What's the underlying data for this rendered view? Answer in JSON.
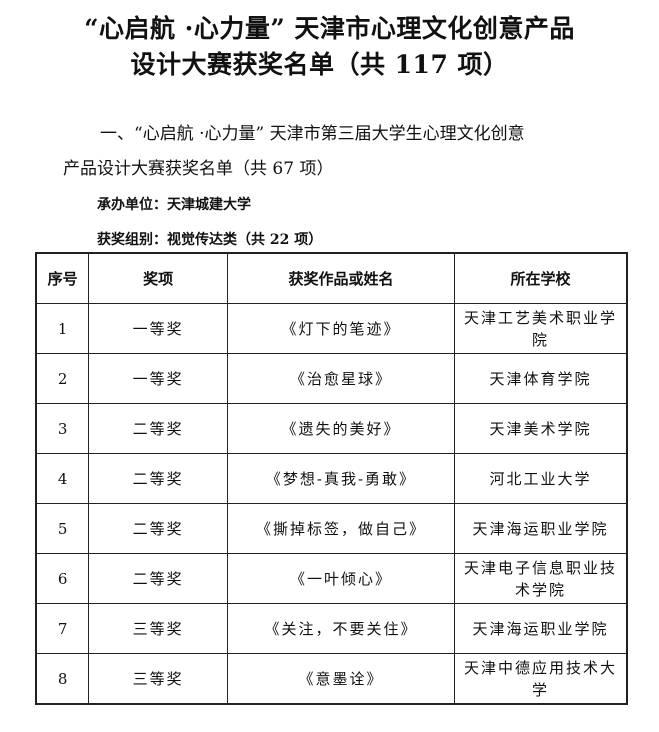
{
  "title": {
    "line1": "“心启航 ·心力量” 天津市心理文化创意产品",
    "line2": "设计大赛获奖名单（共 117 项）"
  },
  "section": {
    "line1": "一、“心启航 ·心力量” 天津市第三届大学生心理文化创意",
    "line2": "产品设计大赛获奖名单（共 67 项）",
    "organizer": "承办单位：天津城建大学",
    "category": "获奖组别：视觉传达类（共 22 项）"
  },
  "table": {
    "headers": [
      "序号",
      "奖项",
      "获奖作品或姓名",
      "所在学校"
    ],
    "rows": [
      [
        "1",
        "一等奖",
        "《灯下的笔迹》",
        "天津工艺美术职业学院"
      ],
      [
        "2",
        "一等奖",
        "《治愈星球》",
        "天津体育学院"
      ],
      [
        "3",
        "二等奖",
        "《遗失的美好》",
        "天津美术学院"
      ],
      [
        "4",
        "二等奖",
        "《梦想-真我-勇敢》",
        "河北工业大学"
      ],
      [
        "5",
        "二等奖",
        "《撕掉标签，做自己》",
        "天津海运职业学院"
      ],
      [
        "6",
        "二等奖",
        "《一叶倾心》",
        "天津电子信息职业技术学院"
      ],
      [
        "7",
        "三等奖",
        "《关注，不要关住》",
        "天津海运职业学院"
      ],
      [
        "8",
        "三等奖",
        "《意墨诠》",
        "天津中德应用技术大学"
      ]
    ]
  }
}
